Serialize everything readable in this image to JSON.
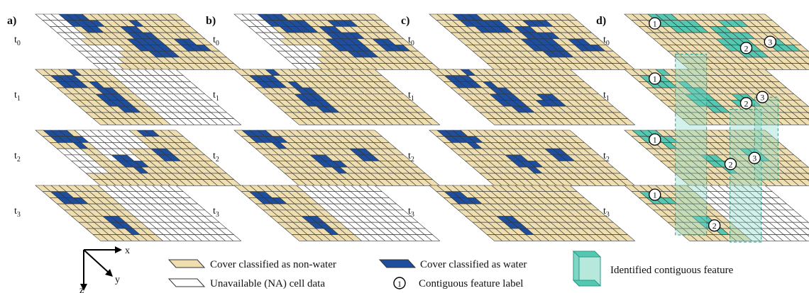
{
  "panels": [
    {
      "letter": "a)"
    },
    {
      "letter": "b)"
    },
    {
      "letter": "c)"
    },
    {
      "letter": "d)"
    }
  ],
  "time_labels": [
    "t0",
    "t1",
    "t2",
    "t3"
  ],
  "feature_labels": [
    "1",
    "2",
    "3"
  ],
  "axes": {
    "x": "x",
    "y": "y",
    "z": "z"
  },
  "legend": {
    "nonwater": "Cover classified as non-water",
    "water": "Cover classified as water",
    "na": "Unavailable (NA) cell data",
    "label": "Contiguous feature label",
    "feature": "Identified contiguous feature",
    "label_symbol": "1"
  },
  "colors": {
    "nonwater": "#efdfb0",
    "water": "#1f4e9c",
    "na": "#ffffff",
    "feature": "#54c8b0",
    "feature_overlay": "#7fd6c4",
    "grid_line": "#333333"
  }
}
